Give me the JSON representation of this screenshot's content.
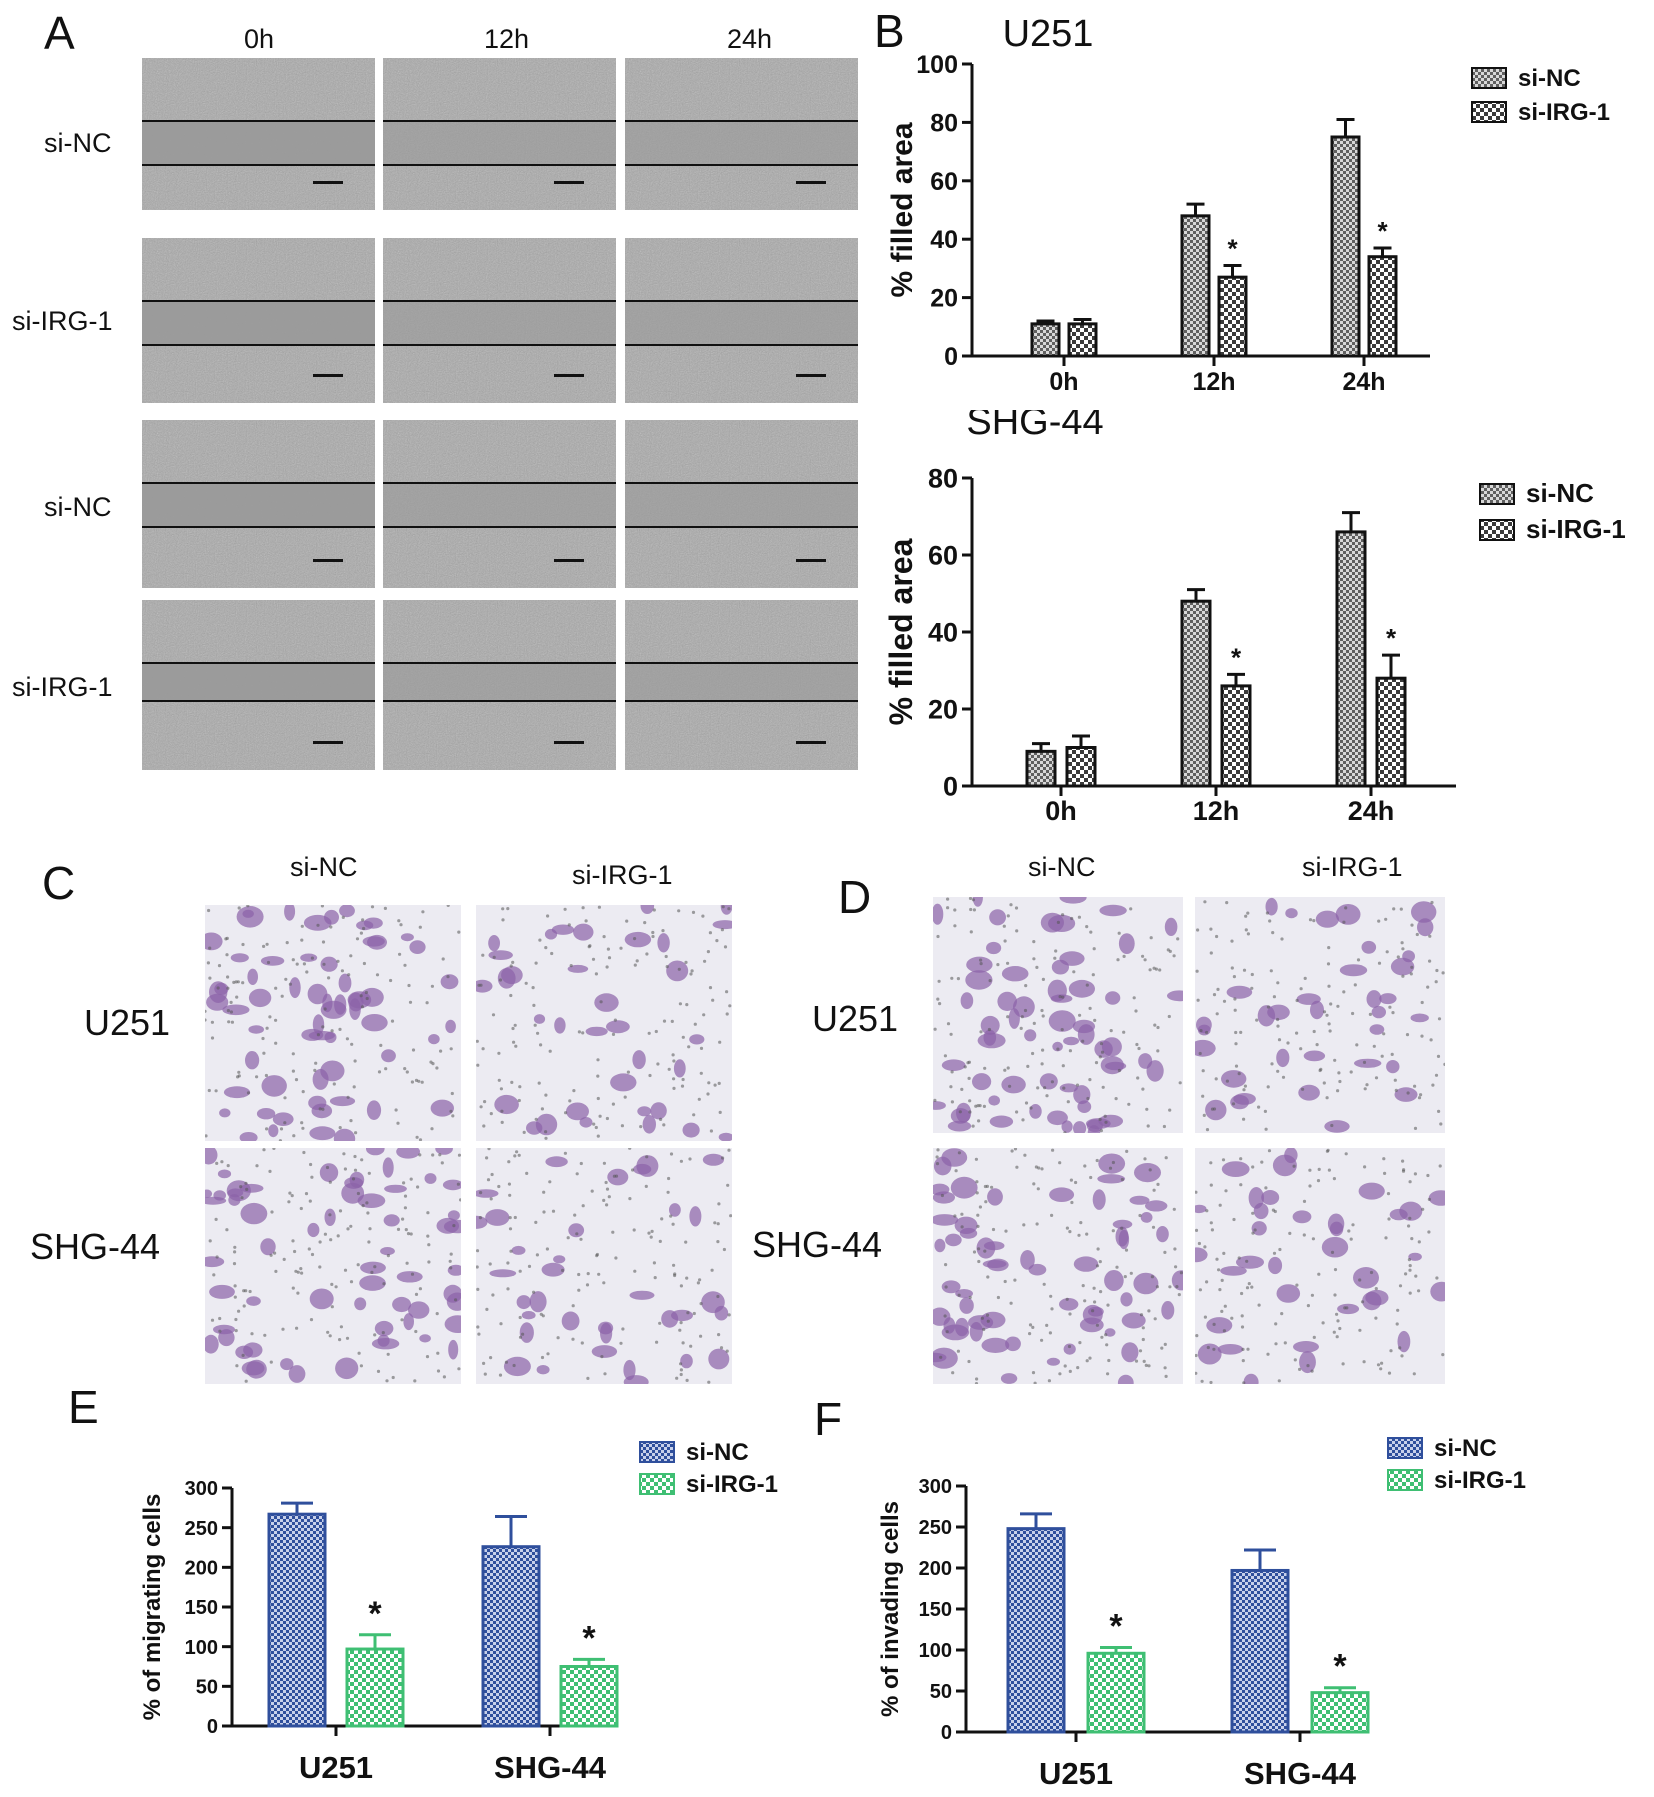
{
  "panels": {
    "A": {
      "letter": "A",
      "time_labels": [
        "0h",
        "12h",
        "24h"
      ],
      "row_labels": [
        "si-NC",
        "si-IRG-1",
        "si-NC",
        "si-IRG-1"
      ]
    },
    "B": {
      "letter": "B"
    },
    "C": {
      "letter": "C",
      "col_labels": [
        "si-NC",
        "si-IRG-1"
      ],
      "row_labels": [
        "U251",
        "SHG-44"
      ]
    },
    "D": {
      "letter": "D",
      "col_labels": [
        "si-NC",
        "si-IRG-1"
      ],
      "row_labels": [
        "U251",
        "SHG-44"
      ]
    },
    "E": {
      "letter": "E"
    },
    "F": {
      "letter": "F"
    }
  },
  "colors": {
    "siNC_gray": "#8a8a8a",
    "siIRG_gray": "#e8e8e8",
    "siNC_blue": "#2f4f9c",
    "siIRG_green": "#3fbf73",
    "stain": "#8b63a8",
    "axis": "#111111"
  },
  "chart_data": [
    {
      "id": "B-U251",
      "type": "bar",
      "title": "U251",
      "ylabel": "% filled area",
      "ylim": [
        0,
        100
      ],
      "yticks": [
        "0",
        "20",
        "40",
        "60",
        "80",
        "100"
      ],
      "categories": [
        "0h",
        "12h",
        "24h"
      ],
      "series": [
        {
          "name": "si-NC",
          "values": [
            11,
            48,
            75
          ],
          "errors": [
            1,
            4,
            6
          ]
        },
        {
          "name": "si-IRG-1",
          "values": [
            11,
            27,
            34
          ],
          "errors": [
            1.5,
            4,
            3
          ]
        }
      ],
      "significance": [
        "",
        "*",
        "*"
      ],
      "legend": "top-right"
    },
    {
      "id": "B-SHG44",
      "type": "bar",
      "title": "SHG-44",
      "ylabel": "% filled area",
      "ylim": [
        0,
        80
      ],
      "yticks": [
        "0",
        "20",
        "40",
        "60",
        "80"
      ],
      "categories": [
        "0h",
        "12h",
        "24h"
      ],
      "series": [
        {
          "name": "si-NC",
          "values": [
            9,
            48,
            66
          ],
          "errors": [
            2,
            3,
            5
          ]
        },
        {
          "name": "si-IRG-1",
          "values": [
            10,
            26,
            28
          ],
          "errors": [
            3,
            3,
            6
          ]
        }
      ],
      "significance": [
        "",
        "*",
        "*"
      ],
      "legend": "top-right"
    },
    {
      "id": "E",
      "type": "bar",
      "title": "",
      "ylabel": "% of migrating cells",
      "ylim": [
        0,
        300
      ],
      "yticks": [
        "0",
        "50",
        "100",
        "150",
        "200",
        "250",
        "300"
      ],
      "categories": [
        "U251",
        "SHG-44"
      ],
      "series": [
        {
          "name": "si-NC",
          "values": [
            267,
            226
          ],
          "errors": [
            14,
            38
          ]
        },
        {
          "name": "si-IRG-1",
          "values": [
            97,
            75
          ],
          "errors": [
            18,
            9
          ]
        }
      ],
      "significance": [
        "*",
        "*"
      ],
      "legend": "top-right"
    },
    {
      "id": "F",
      "type": "bar",
      "title": "",
      "ylabel": "% of invading cells",
      "ylim": [
        0,
        300
      ],
      "yticks": [
        "0",
        "50",
        "100",
        "150",
        "200",
        "250",
        "300"
      ],
      "categories": [
        "U251",
        "SHG-44"
      ],
      "series": [
        {
          "name": "si-NC",
          "values": [
            248,
            197
          ],
          "errors": [
            18,
            25
          ]
        },
        {
          "name": "si-IRG-1",
          "values": [
            96,
            48
          ],
          "errors": [
            7,
            6
          ]
        }
      ],
      "significance": [
        "*",
        "*"
      ],
      "legend": "top-right"
    }
  ]
}
